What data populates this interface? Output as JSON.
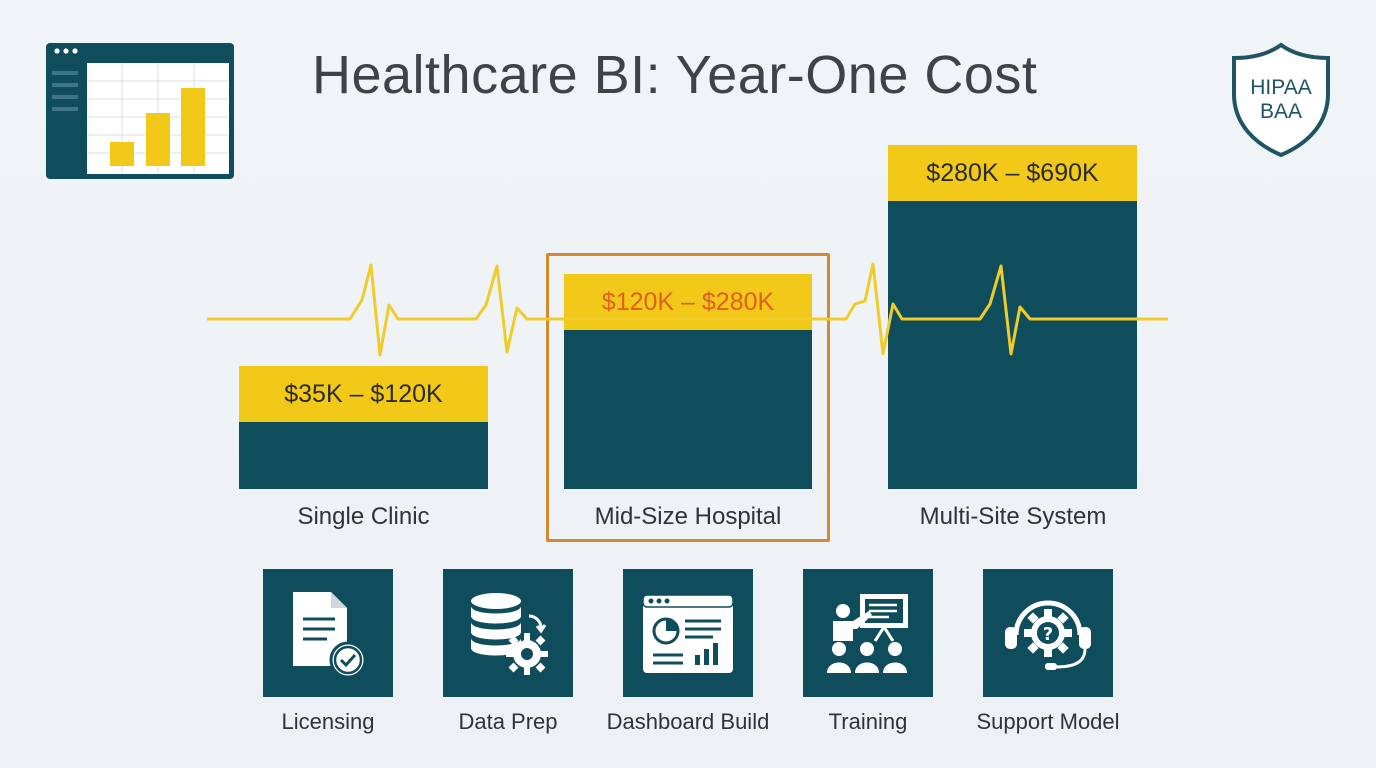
{
  "title": "Healthcare BI: Year-One Cost",
  "badge": {
    "line1": "HIPAA",
    "line2": "BAA",
    "icon": "shield-icon"
  },
  "logo": {
    "icon": "bar-chart-window-icon"
  },
  "colors": {
    "bar": "#0f4d5c",
    "cap": "#f2c919",
    "accent": "#e0601d",
    "highlight_border": "#d38a2c",
    "pulse": "#f0cc2a"
  },
  "chart_data": {
    "type": "bar",
    "categories": [
      "Single Clinic",
      "Mid-Size Hospital",
      "Multi-Site System"
    ],
    "ranges": [
      {
        "low": 35,
        "high": 120,
        "label": "$35K – $120K"
      },
      {
        "low": 120,
        "high": 280,
        "label": "$120K – $280K"
      },
      {
        "low": 280,
        "high": 690,
        "label": "$280K – $690K"
      }
    ],
    "unit": "K USD",
    "highlighted_category": "Mid-Size Hospital",
    "title": "Healthcare BI: Year-One Cost",
    "grid": false,
    "legend": "none"
  },
  "cost_components": [
    {
      "label": "Licensing",
      "icon": "document-check-icon"
    },
    {
      "label": "Data Prep",
      "icon": "database-gear-icon"
    },
    {
      "label": "Dashboard Build",
      "icon": "dashboard-icon"
    },
    {
      "label": "Training",
      "icon": "presentation-training-icon"
    },
    {
      "label": "Support Model",
      "icon": "support-headset-icon"
    }
  ]
}
